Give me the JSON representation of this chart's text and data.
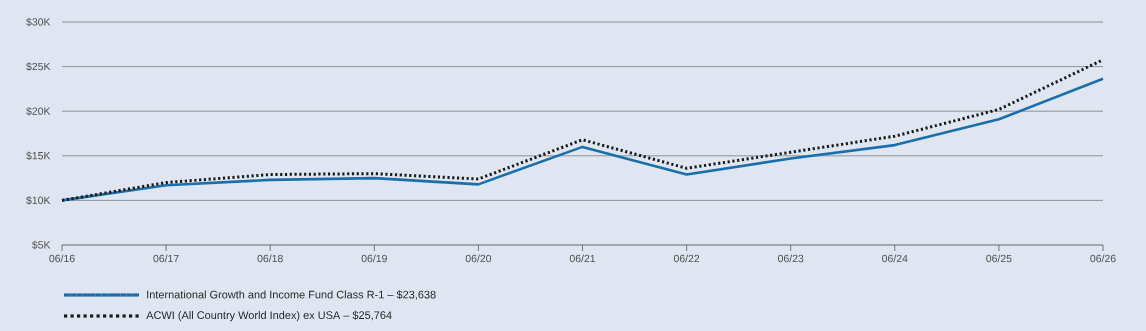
{
  "chart_data": {
    "type": "line",
    "categories": [
      "06/16",
      "06/17",
      "06/18",
      "06/19",
      "06/20",
      "06/21",
      "06/22",
      "06/23",
      "06/24",
      "06/25",
      "06/26"
    ],
    "series": [
      {
        "name": "International Growth and Income Fund Class R-1 – $23,638",
        "color": "#1a6fab",
        "line_style": "solid",
        "values": [
          10000,
          11700,
          12300,
          12500,
          11800,
          16000,
          12900,
          14700,
          16200,
          19100,
          23638
        ]
      },
      {
        "name": "ACWI (All Country World Index) ex USA – $25,764",
        "color": "#1a1a1a",
        "line_style": "dotted",
        "values": [
          10000,
          12000,
          12900,
          13000,
          12400,
          16800,
          13600,
          15400,
          17200,
          20200,
          25764
        ]
      }
    ],
    "ylim": [
      5000,
      30000
    ],
    "yticks": [
      {
        "value": 5000,
        "label": "$5K"
      },
      {
        "value": 10000,
        "label": "$10K"
      },
      {
        "value": 15000,
        "label": "$15K"
      },
      {
        "value": 20000,
        "label": "$20K"
      },
      {
        "value": 25000,
        "label": "$25K"
      },
      {
        "value": 30000,
        "label": "$30K"
      }
    ],
    "grid": "y",
    "legend": "bottom",
    "marker": "none"
  }
}
